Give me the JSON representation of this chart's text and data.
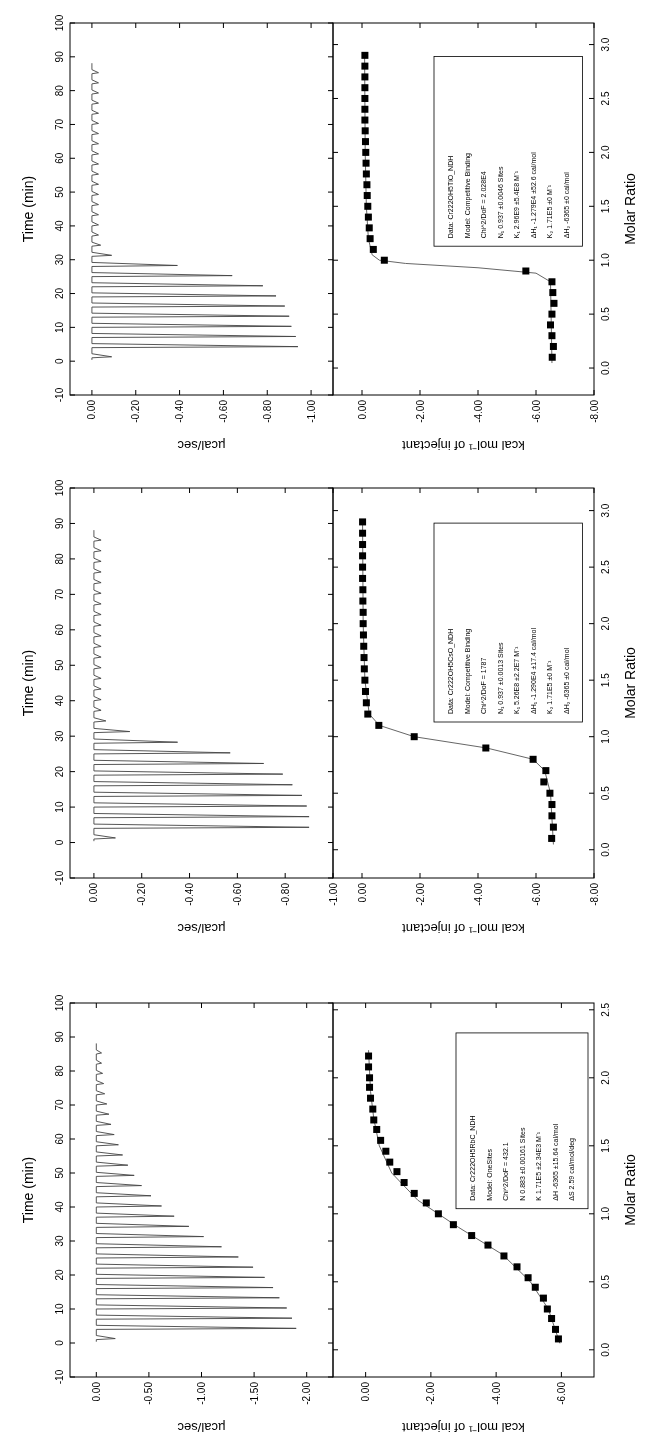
{
  "chart_data": [
    {
      "type": "line",
      "ylabel": "Time (min)",
      "xlabel": "µcal/sec",
      "ylim": [
        -10,
        100
      ],
      "yticks": [
        -10,
        0,
        10,
        20,
        30,
        40,
        50,
        60,
        70,
        80,
        90,
        100
      ],
      "xlim": [
        0.1,
        -1.1
      ],
      "xticks": [
        {
          "value": 0,
          "label": "0.00"
        },
        {
          "value": -0.2,
          "label": "-0.20"
        },
        {
          "value": -0.4,
          "label": "-0.40"
        },
        {
          "value": -0.6,
          "label": "-0.60"
        },
        {
          "value": -0.8,
          "label": "-0.80"
        },
        {
          "value": -1,
          "label": "-1.00"
        }
      ],
      "color": "#444444",
      "values": [
        0.5,
        1,
        1.3,
        2.2,
        4,
        4.3,
        5.2,
        7,
        7.3,
        8.2,
        10,
        10.3,
        11.2,
        13,
        13.3,
        14.2,
        16,
        16.3,
        17.2,
        19,
        19.3,
        20.2,
        22,
        22.3,
        23.2,
        25,
        25.3,
        26.2,
        28,
        28.3,
        29.2,
        31,
        31.3,
        32.2,
        34,
        34.3,
        35.2,
        37,
        37.3,
        38.2,
        40,
        40.3,
        41.2,
        43,
        43.3,
        44.2,
        46,
        46.3,
        47.2,
        49,
        49.3,
        50.2,
        52,
        52.3,
        53.2,
        55,
        55.3,
        56.2,
        58,
        58.3,
        59.2,
        61,
        61.3,
        62.2,
        64,
        64.3,
        65.2,
        67,
        67.3,
        68.2,
        70,
        70.3,
        71.2,
        73,
        73.3,
        74.2,
        76,
        76.3,
        77.2,
        79,
        79.3,
        80.2,
        82,
        82.3,
        83.2,
        85,
        85.3,
        86.2,
        88
      ],
      "x": [
        0,
        0,
        -0.09,
        0,
        0,
        -0.94,
        0,
        0,
        -0.93,
        0,
        0,
        -0.91,
        0,
        0,
        -0.9,
        0,
        0,
        -0.88,
        0,
        0,
        -0.84,
        0,
        0,
        -0.78,
        0,
        0,
        -0.64,
        0,
        0,
        -0.39,
        0,
        0,
        -0.09,
        0,
        0,
        -0.04,
        0,
        0,
        -0.03,
        0,
        0,
        -0.03,
        0,
        0,
        -0.03,
        0,
        0,
        -0.03,
        0,
        0,
        -0.03,
        0,
        0,
        -0.03,
        0,
        0,
        -0.03,
        0,
        0,
        -0.03,
        0,
        0,
        -0.03,
        0,
        0,
        -0.03,
        0,
        0,
        -0.03,
        0,
        0,
        -0.03,
        0,
        0,
        -0.03,
        0,
        0,
        -0.03,
        0,
        0,
        -0.03,
        0,
        0,
        -0.03,
        0,
        0,
        -0.03,
        0,
        0
      ]
    },
    {
      "type": "scatter",
      "ylabel": "Molar Ratio",
      "xlabel": "kcal mol⁻¹ of injectant",
      "ylim": [
        -0.25,
        3.2
      ],
      "yticks": [
        {
          "value": 0,
          "label": "0.0"
        },
        {
          "value": 0.5,
          "label": "0.5"
        },
        {
          "value": 1,
          "label": "1.0"
        },
        {
          "value": 1.5,
          "label": "1.5"
        },
        {
          "value": 2,
          "label": "2.0"
        },
        {
          "value": 2.5,
          "label": "2.5"
        },
        {
          "value": 3,
          "label": "3.0"
        }
      ],
      "xlim": [
        1,
        -8
      ],
      "xticks": [
        {
          "value": 0,
          "label": "0.00"
        },
        {
          "value": -2,
          "label": "-2.00"
        },
        {
          "value": -4,
          "label": "-4.00"
        },
        {
          "value": -6,
          "label": "-6.00"
        },
        {
          "value": -8,
          "label": "-8.00"
        }
      ],
      "marker": "square",
      "series": [
        {
          "type": "line",
          "color": "#555555",
          "marker": "none",
          "values": [
            0.05,
            0.8,
            0.88,
            0.93,
            0.97,
            1.0,
            1.05,
            1.2,
            1.5,
            2.0,
            2.9
          ],
          "x": [
            -6.55,
            -6.5,
            -6.0,
            -4.0,
            -1.5,
            -0.6,
            -0.35,
            -0.22,
            -0.15,
            -0.11,
            -0.09
          ]
        },
        {
          "color": "#000000",
          "values": [
            0.1,
            0.2,
            0.3,
            0.4,
            0.5,
            0.6,
            0.7,
            0.8,
            0.9,
            1.0,
            1.1,
            1.2,
            1.3,
            1.4,
            1.5,
            1.6,
            1.7,
            1.8,
            1.9,
            2.0,
            2.1,
            2.2,
            2.3,
            2.4,
            2.5,
            2.6,
            2.7,
            2.8,
            2.9
          ],
          "x": [
            -6.56,
            -6.6,
            -6.55,
            -6.5,
            -6.55,
            -6.62,
            -6.58,
            -6.55,
            -5.65,
            -0.77,
            -0.39,
            -0.28,
            -0.25,
            -0.22,
            -0.2,
            -0.18,
            -0.17,
            -0.15,
            -0.14,
            -0.13,
            -0.12,
            -0.11,
            -0.1,
            -0.1,
            -0.1,
            -0.1,
            -0.1,
            -0.1,
            -0.1
          ]
        }
      ],
      "annotations": [
        "Data: Cr222OH5TlO_NDH",
        "Model: Competitive Binding",
        "Chi^2/DoF = 2.028E4",
        "N₁ 0.937 ±0.0046 Sites",
        "K₁ 2.96E9 ±5.4E8 M⁻¹",
        "ΔH₁ -1.279E4 ±52.6 cal/mol",
        "K₂ 1.71E5 ±0 M⁻¹",
        "ΔH₂ -6365 ±0 cal/mol"
      ]
    },
    {
      "type": "line",
      "ylabel": "Time (min)",
      "xlabel": "µcal/sec",
      "ylim": [
        -10,
        100
      ],
      "yticks": [
        -10,
        0,
        10,
        20,
        30,
        40,
        50,
        60,
        70,
        80,
        90,
        100
      ],
      "xlim": [
        0.1,
        -1.0
      ],
      "xticks": [
        {
          "value": 0,
          "label": "0.00"
        },
        {
          "value": -0.2,
          "label": "-0.20"
        },
        {
          "value": -0.4,
          "label": "-0.40"
        },
        {
          "value": -0.6,
          "label": "-0.60"
        },
        {
          "value": -0.8,
          "label": "-0.80"
        },
        {
          "value": -1,
          "label": "-1.00"
        }
      ],
      "color": "#444444",
      "values": [
        0.5,
        1,
        1.3,
        2.2,
        4,
        4.3,
        5.2,
        7,
        7.3,
        8.2,
        10,
        10.3,
        11.2,
        13,
        13.3,
        14.2,
        16,
        16.3,
        17.2,
        19,
        19.3,
        20.2,
        22,
        22.3,
        23.2,
        25,
        25.3,
        26.2,
        28,
        28.3,
        29.2,
        31,
        31.3,
        32.2,
        34,
        34.3,
        35.2,
        37,
        37.3,
        38.2,
        40,
        40.3,
        41.2,
        43,
        43.3,
        44.2,
        46,
        46.3,
        47.2,
        49,
        49.3,
        50.2,
        52,
        52.3,
        53.2,
        55,
        55.3,
        56.2,
        58,
        58.3,
        59.2,
        61,
        61.3,
        62.2,
        64,
        64.3,
        65.2,
        67,
        67.3,
        68.2,
        70,
        70.3,
        71.2,
        73,
        73.3,
        74.2,
        76,
        76.3,
        77.2,
        79,
        79.3,
        80.2,
        82,
        82.3,
        83.2,
        85,
        85.3,
        86.2,
        88
      ],
      "x": [
        0,
        0,
        -0.09,
        0,
        0,
        -0.9,
        0,
        0,
        -0.9,
        0,
        0,
        -0.89,
        0,
        0,
        -0.87,
        0,
        0,
        -0.83,
        0,
        0,
        -0.79,
        0,
        0,
        -0.71,
        0,
        0,
        -0.57,
        0,
        0,
        -0.35,
        0,
        0,
        -0.15,
        0,
        0,
        -0.05,
        0,
        0,
        -0.03,
        0,
        0,
        -0.03,
        0,
        0,
        -0.03,
        0,
        0,
        -0.03,
        0,
        0,
        -0.03,
        0,
        0,
        -0.03,
        0,
        0,
        -0.03,
        0,
        0,
        -0.03,
        0,
        0,
        -0.03,
        0,
        0,
        -0.03,
        0,
        0,
        -0.03,
        0,
        0,
        -0.03,
        0,
        0,
        -0.03,
        0,
        0,
        -0.03,
        0,
        0,
        -0.03,
        0,
        0,
        -0.03,
        0,
        0,
        -0.03,
        0,
        0
      ]
    },
    {
      "type": "scatter",
      "ylabel": "Molar Ratio",
      "xlabel": "kcal mol⁻¹ of injectant",
      "ylim": [
        -0.25,
        3.2
      ],
      "yticks": [
        {
          "value": 0,
          "label": "0.0"
        },
        {
          "value": 0.5,
          "label": "0.5"
        },
        {
          "value": 1,
          "label": "1.0"
        },
        {
          "value": 1.5,
          "label": "1.5"
        },
        {
          "value": 2,
          "label": "2.0"
        },
        {
          "value": 2.5,
          "label": "2.5"
        },
        {
          "value": 3,
          "label": "3.0"
        }
      ],
      "xlim": [
        1,
        -8
      ],
      "xticks": [
        {
          "value": 0,
          "label": "0.00"
        },
        {
          "value": -2,
          "label": "-2.00"
        },
        {
          "value": -4,
          "label": "-4.00"
        },
        {
          "value": -6,
          "label": "-6.00"
        },
        {
          "value": -8,
          "label": "-8.00"
        }
      ],
      "marker": "square",
      "series": [
        {
          "type": "line",
          "color": "#555555",
          "marker": "none",
          "values": [
            0.05,
            0.5,
            0.7,
            0.8,
            0.9,
            1.0,
            1.1,
            1.2,
            1.5,
            2.0,
            2.9
          ],
          "x": [
            -6.6,
            -6.5,
            -6.3,
            -5.9,
            -4.3,
            -1.8,
            -0.6,
            -0.25,
            -0.1,
            -0.04,
            -0.02
          ]
        },
        {
          "color": "#000000",
          "values": [
            0.1,
            0.2,
            0.3,
            0.4,
            0.5,
            0.6,
            0.7,
            0.8,
            0.9,
            1.0,
            1.1,
            1.2,
            1.3,
            1.4,
            1.5,
            1.6,
            1.7,
            1.8,
            1.9,
            2.0,
            2.1,
            2.2,
            2.3,
            2.4,
            2.5,
            2.6,
            2.7,
            2.8,
            2.9
          ],
          "x": [
            -6.54,
            -6.6,
            -6.55,
            -6.55,
            -6.48,
            -6.27,
            -6.34,
            -5.9,
            -4.27,
            -1.8,
            -0.58,
            -0.2,
            -0.15,
            -0.12,
            -0.1,
            -0.08,
            -0.07,
            -0.06,
            -0.05,
            -0.04,
            -0.04,
            -0.03,
            -0.03,
            -0.02,
            -0.02,
            -0.02,
            -0.02,
            -0.02,
            -0.02
          ]
        }
      ],
      "annotations": [
        "Data: Cr222OH5CsO_NDH",
        "Model: Competitive Binding",
        "Chi^2/DoF = 1787",
        "N₁ 0.937 ±0.0013 Sites",
        "K₁ 5.26E8 ±2.2E7 M⁻¹",
        "ΔH₁ -1.290E4 ±17.4 cal/mol",
        "K₂ 1.71E5 ±0 M⁻¹",
        "ΔH₂ -6365 ±0 cal/mol"
      ]
    },
    {
      "type": "line",
      "ylabel": "Time (min)",
      "xlabel": "µcal/sec",
      "ylim": [
        -10,
        100
      ],
      "yticks": [
        -10,
        0,
        10,
        20,
        30,
        40,
        50,
        60,
        70,
        80,
        90,
        100
      ],
      "xlim": [
        0.25,
        -2.25
      ],
      "xticks": [
        {
          "value": 0,
          "label": "0.00"
        },
        {
          "value": -0.5,
          "label": "-0.50"
        },
        {
          "value": -1,
          "label": "-1.00"
        },
        {
          "value": -1.5,
          "label": "-1.50"
        },
        {
          "value": -2,
          "label": "-2.00"
        }
      ],
      "color": "#444444",
      "values": [
        0.5,
        1,
        1.3,
        2.2,
        4,
        4.3,
        5.2,
        7,
        7.3,
        8.2,
        10,
        10.3,
        11.2,
        13,
        13.3,
        14.2,
        16,
        16.3,
        17.2,
        19,
        19.3,
        20.2,
        22,
        22.3,
        23.2,
        25,
        25.3,
        26.2,
        28,
        28.3,
        29.2,
        31,
        31.3,
        32.2,
        34,
        34.3,
        35.2,
        37,
        37.3,
        38.2,
        40,
        40.3,
        41.2,
        43,
        43.3,
        44.2,
        46,
        46.3,
        47.2,
        49,
        49.3,
        50.2,
        52,
        52.3,
        53.2,
        55,
        55.3,
        56.2,
        58,
        58.3,
        59.2,
        61,
        61.3,
        62.2,
        64,
        64.3,
        65.2,
        67,
        67.3,
        68.2,
        70,
        70.3,
        71.2,
        73,
        73.3,
        74.2,
        76,
        76.3,
        77.2,
        79,
        79.3,
        80.2,
        82,
        82.3,
        83.2,
        85,
        85.3,
        86.2,
        88
      ],
      "x": [
        0,
        0,
        -0.18,
        0,
        0,
        -1.9,
        0,
        0,
        -1.86,
        0,
        0,
        -1.81,
        0,
        0,
        -1.74,
        0,
        0,
        -1.68,
        0,
        0,
        -1.6,
        0,
        0,
        -1.49,
        0,
        0,
        -1.35,
        0,
        0,
        -1.19,
        0,
        0,
        -1.02,
        0,
        0,
        -0.88,
        0,
        0,
        -0.74,
        0,
        0,
        -0.62,
        0,
        0,
        -0.52,
        0,
        0,
        -0.43,
        0,
        0,
        -0.36,
        0,
        0,
        -0.3,
        0,
        0,
        -0.25,
        0,
        0,
        -0.21,
        0,
        0,
        -0.17,
        0,
        0,
        -0.14,
        0,
        0,
        -0.12,
        0,
        0,
        -0.1,
        0,
        0,
        -0.08,
        0,
        0,
        -0.07,
        0,
        0,
        -0.06,
        0,
        0,
        -0.05,
        0,
        0,
        -0.05,
        0,
        0
      ]
    },
    {
      "type": "scatter",
      "ylabel": "Molar Ratio",
      "xlabel": "kcal mol⁻¹ of injectant",
      "ylim": [
        -0.2,
        2.55
      ],
      "yticks": [
        {
          "value": 0,
          "label": "0.0"
        },
        {
          "value": 0.5,
          "label": "0.5"
        },
        {
          "value": 1,
          "label": "1.0"
        },
        {
          "value": 1.5,
          "label": "1.5"
        },
        {
          "value": 2,
          "label": "2.0"
        },
        {
          "value": 2.5,
          "label": "2.5"
        }
      ],
      "xlim": [
        1,
        -7
      ],
      "xticks": [
        {
          "value": 0,
          "label": "0.00"
        },
        {
          "value": -2,
          "label": "-2.00"
        },
        {
          "value": -4,
          "label": "-4.00"
        },
        {
          "value": -6,
          "label": "-6.00"
        }
      ],
      "marker": "square",
      "series": [
        {
          "type": "line",
          "color": "#555555",
          "marker": "none",
          "values": [
            0.05,
            0.3,
            0.5,
            0.7,
            0.9,
            1.1,
            1.3,
            1.5,
            1.7,
            1.9,
            2.2
          ],
          "x": [
            -5.95,
            -5.6,
            -5.05,
            -4.2,
            -2.85,
            -1.6,
            -0.8,
            -0.42,
            -0.25,
            -0.15,
            -0.09
          ]
        },
        {
          "color": "#000000",
          "values": [
            0.08,
            0.15,
            0.23,
            0.3,
            0.38,
            0.46,
            0.53,
            0.61,
            0.69,
            0.77,
            0.84,
            0.92,
            1.0,
            1.08,
            1.15,
            1.23,
            1.31,
            1.38,
            1.46,
            1.54,
            1.62,
            1.69,
            1.77,
            1.85,
            1.93,
            2.0,
            2.08,
            2.16
          ],
          "x": [
            -5.91,
            -5.82,
            -5.7,
            -5.57,
            -5.45,
            -5.2,
            -4.98,
            -4.64,
            -4.24,
            -3.75,
            -3.25,
            -2.69,
            -2.23,
            -1.86,
            -1.49,
            -1.18,
            -0.96,
            -0.74,
            -0.62,
            -0.46,
            -0.34,
            -0.25,
            -0.22,
            -0.15,
            -0.12,
            -0.12,
            -0.09,
            -0.09
          ]
        }
      ],
      "annotations": [
        "Data: Cr222OH5RbC_NDH",
        "Model: OneSites",
        "Chi^2/DoF = 432.1",
        "N 0.883 ±0.00161 Sites",
        "K 1.71E5 ±2.34E3 M⁻¹",
        "ΔH -6365 ±15.64 cal/mol",
        "ΔS 2.59 cal/mol/deg"
      ]
    }
  ]
}
